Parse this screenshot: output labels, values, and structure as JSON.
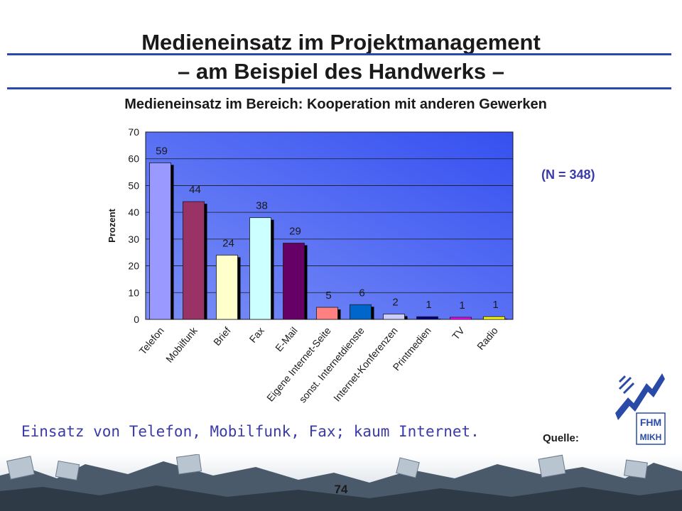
{
  "slide": {
    "title_line1": "Medieneinsatz im Projektmanagement",
    "title_line2": "– am Beispiel des Handwerks –",
    "subtitle": "Medieneinsatz im Bereich: Kooperation mit anderen Gewerken",
    "sample_note": "(N = 348)",
    "summary": "Einsatz von Telefon, Mobilfunk, Fax; kaum Internet.",
    "source_label": "Quelle:",
    "page_number": "74",
    "logo_text": "FHM",
    "logo_text2": "MIKH"
  },
  "colors": {
    "rule": "#2a4aa8",
    "accent_text": "#3a3aa8",
    "plot_bg_left": "#7b8ff7",
    "plot_bg_right": "#3550f0"
  },
  "chart_data": {
    "type": "bar",
    "title": "",
    "xlabel": "",
    "ylabel": "Prozent",
    "ylim": [
      0,
      70
    ],
    "yticks": [
      0,
      10,
      20,
      30,
      40,
      50,
      60,
      70
    ],
    "grid": true,
    "categories": [
      "Telefon",
      "Mobilfunk",
      "Brief",
      "Fax",
      "E-Mail",
      "Eigene Internet-Seite",
      "sonst. Internetdienste",
      "Internet-Konferenzen",
      "Printmedien",
      "TV",
      "Radio"
    ],
    "values": [
      58.5,
      44,
      24,
      38,
      28.5,
      4.5,
      5.5,
      2,
      1,
      0.8,
      1
    ],
    "labels": [
      "59",
      "44",
      "24",
      "38",
      "29",
      "5",
      "6",
      "2",
      "1",
      "1",
      "1"
    ],
    "bar_colors": [
      "#9999ff",
      "#993366",
      "#ffffcc",
      "#ccffff",
      "#660066",
      "#ff8080",
      "#0066cc",
      "#ccccff",
      "#000080",
      "#ff00ff",
      "#ffff00"
    ]
  }
}
